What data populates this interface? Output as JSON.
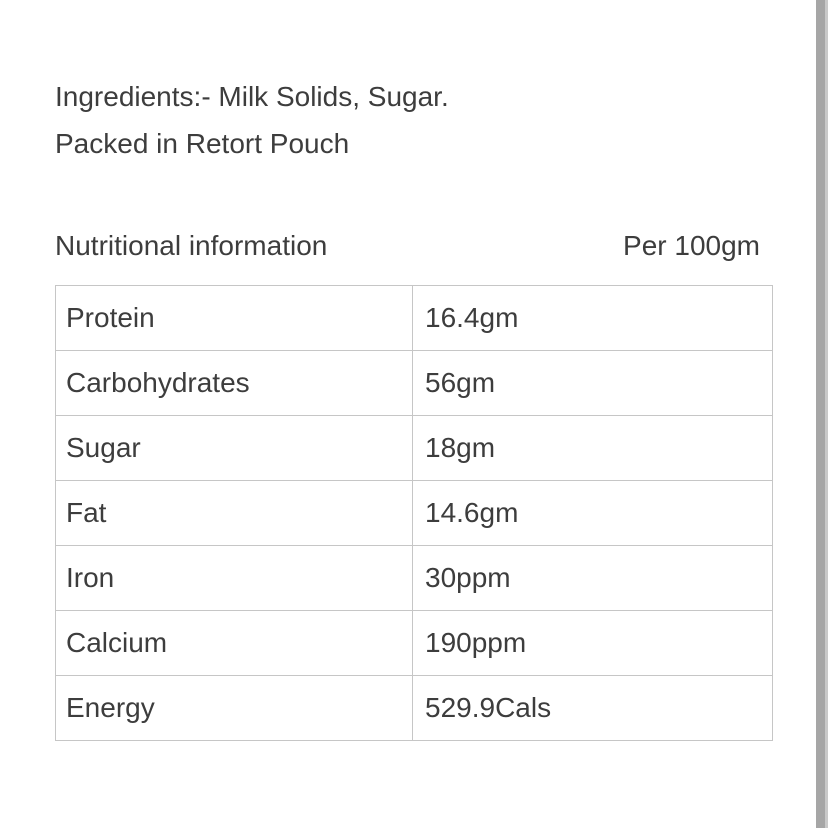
{
  "colors": {
    "background": "#ffffff",
    "text": "#3d3d3d",
    "table_border": "#c6c6c6",
    "scrollbar_thumb": "#a6a6a6",
    "scrollbar_edge": "#c9c9c9"
  },
  "ingredients": {
    "line1": "Ingredients:- Milk Solids, Sugar.",
    "line2": "Packed in Retort Pouch"
  },
  "nutrition_header": {
    "title": "Nutritional information",
    "unit": "Per 100gm"
  },
  "nutrition_table": {
    "rows": [
      {
        "label": "Protein",
        "value": "16.4gm"
      },
      {
        "label": "Carbohydrates",
        "value": "56gm"
      },
      {
        "label": "Sugar",
        "value": "18gm"
      },
      {
        "label": "Fat",
        "value": "14.6gm"
      },
      {
        "label": "Iron",
        "value": "30ppm"
      },
      {
        "label": "Calcium",
        "value": "190ppm"
      },
      {
        "label": "Energy",
        "value": "529.9Cals"
      }
    ]
  }
}
